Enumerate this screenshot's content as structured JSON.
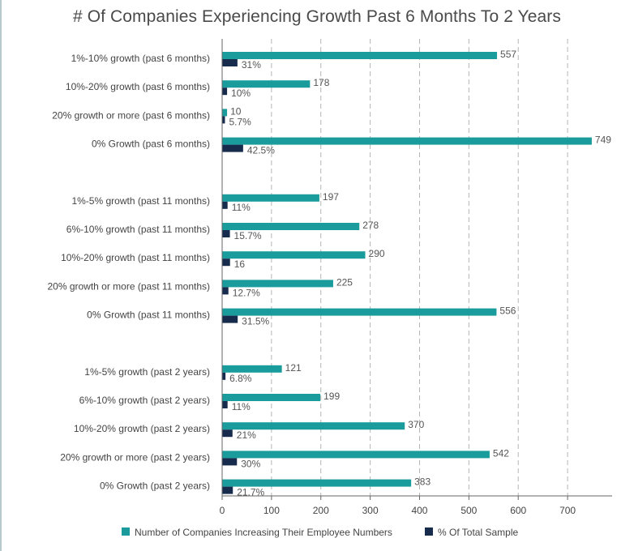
{
  "title": "# Of Companies Experiencing Growth Past 6 Months To 2 Years",
  "colors": {
    "teal": "#1a9c9c",
    "navy": "#172b4d"
  },
  "chart_data": {
    "type": "bar",
    "orientation": "horizontal",
    "title": "# Of Companies Experiencing Growth Past 6 Months To 2 Years",
    "xlim": [
      0,
      750
    ],
    "xticks": [
      0,
      100,
      200,
      300,
      400,
      500,
      600,
      700
    ],
    "grid": "vertical dashed",
    "legend_position": "bottom",
    "groups": [
      [
        {
          "label": "1%-10% growth (past 6 months)",
          "a": 557,
          "a_label": "557",
          "b": 31,
          "b_label": "31%"
        },
        {
          "label": "10%-20% growth (past 6 months)",
          "a": 178,
          "a_label": "178",
          "b": 10,
          "b_label": "10%"
        },
        {
          "label": "20% growth or more (past 6 months)",
          "a": 10,
          "a_label": "10",
          "b": 5.7,
          "b_label": "5.7%"
        },
        {
          "label": "0% Growth (past 6 months)",
          "a": 749,
          "a_label": "749",
          "b": 42.5,
          "b_label": "42.5%"
        }
      ],
      [
        {
          "label": "1%-5% growth (past 11 months)",
          "a": 197,
          "a_label": "197",
          "b": 11,
          "b_label": "11%"
        },
        {
          "label": "6%-10% growth (past 11 months)",
          "a": 278,
          "a_label": "278",
          "b": 15.7,
          "b_label": "15.7%"
        },
        {
          "label": "10%-20% growth (past 11 months)",
          "a": 290,
          "a_label": "290",
          "b": 16,
          "b_label": "16"
        },
        {
          "label": "20% growth or more (past 11 months)",
          "a": 225,
          "a_label": "225",
          "b": 12.7,
          "b_label": "12.7%"
        },
        {
          "label": "0% Growth (past 11 months)",
          "a": 556,
          "a_label": "556",
          "b": 31.5,
          "b_label": "31.5%"
        }
      ],
      [
        {
          "label": "1%-5% growth (past 2 years)",
          "a": 121,
          "a_label": "121",
          "b": 6.8,
          "b_label": "6.8%"
        },
        {
          "label": "6%-10% growth (past 2 years)",
          "a": 199,
          "a_label": "199",
          "b": 11,
          "b_label": "11%"
        },
        {
          "label": "10%-20% growth (past 2 years)",
          "a": 370,
          "a_label": "370",
          "b": 21,
          "b_label": "21%"
        },
        {
          "label": "20% growth or more (past 2 years)",
          "a": 542,
          "a_label": "542",
          "b": 30,
          "b_label": "30%"
        },
        {
          "label": "0% Growth (past 2 years)",
          "a": 383,
          "a_label": "383",
          "b": 21.7,
          "b_label": "21.7%"
        }
      ]
    ],
    "series": [
      {
        "name": "Number of Companies Increasing Their Employee Numbers",
        "color": "#1a9c9c"
      },
      {
        "name": "% Of Total Sample",
        "color": "#172b4d"
      }
    ]
  }
}
